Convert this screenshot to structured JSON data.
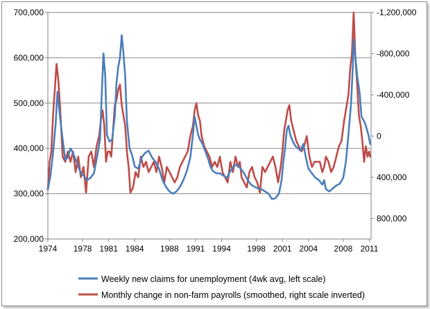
{
  "chart_data": {
    "type": "line",
    "title": "",
    "xlabel": "",
    "ylabel": "",
    "y2label": "",
    "x_ticks": [
      "1974",
      "1978",
      "1981",
      "1984",
      "1988",
      "1991",
      "1994",
      "1998",
      "2001",
      "2004",
      "2008",
      "2011"
    ],
    "xlim": [
      1974,
      2011.2
    ],
    "y_ticks": [
      "200,000",
      "300,000",
      "400,000",
      "500,000",
      "600,000",
      "700,000"
    ],
    "ylim": [
      200000,
      700000
    ],
    "y2_ticks": [
      "-1,200,000",
      "-800,000",
      "-400,000",
      "0",
      "400,000",
      "800,000"
    ],
    "y2lim": [
      -1200000,
      1000000
    ],
    "y2_inverted": true,
    "grid": true,
    "legend_position": "bottom",
    "series": [
      {
        "name": "Weekly new claims for unemployment (4wk avg, left scale)",
        "axis": "left",
        "color": "#4a7ebb",
        "x": [
          1974.0,
          1974.3,
          1974.6,
          1974.9,
          1975.1,
          1975.4,
          1975.7,
          1976.0,
          1976.3,
          1976.6,
          1976.9,
          1977.2,
          1977.5,
          1977.8,
          1978.1,
          1978.5,
          1978.9,
          1979.3,
          1979.7,
          1980.0,
          1980.2,
          1980.4,
          1980.6,
          1980.8,
          1981.1,
          1981.4,
          1981.7,
          1981.9,
          1982.1,
          1982.3,
          1982.5,
          1982.7,
          1982.9,
          1983.1,
          1983.4,
          1983.7,
          1984.0,
          1984.4,
          1984.8,
          1985.2,
          1985.6,
          1986.0,
          1986.4,
          1986.8,
          1987.2,
          1987.6,
          1988.0,
          1988.4,
          1988.8,
          1989.2,
          1989.6,
          1990.0,
          1990.4,
          1990.7,
          1990.9,
          1991.1,
          1991.3,
          1991.5,
          1991.8,
          1992.1,
          1992.4,
          1992.7,
          1993.0,
          1993.4,
          1993.8,
          1994.2,
          1994.6,
          1995.0,
          1995.4,
          1995.8,
          1996.2,
          1996.6,
          1997.0,
          1997.4,
          1997.8,
          1998.2,
          1998.6,
          1999.0,
          1999.4,
          1999.8,
          2000.2,
          2000.6,
          2000.9,
          2001.1,
          2001.3,
          2001.5,
          2001.7,
          2001.9,
          2002.2,
          2002.5,
          2002.8,
          2003.1,
          2003.4,
          2003.7,
          2004.0,
          2004.4,
          2004.8,
          2005.2,
          2005.6,
          2005.8,
          2006.0,
          2006.4,
          2006.8,
          2007.2,
          2007.6,
          2008.0,
          2008.3,
          2008.6,
          2008.9,
          2009.1,
          2009.2,
          2009.4,
          2009.6,
          2009.9,
          2010.1,
          2010.4,
          2010.6,
          2010.9,
          2011.1
        ],
        "values": [
          310000,
          340000,
          390000,
          455000,
          525000,
          470000,
          420000,
          375000,
          380000,
          400000,
          390000,
          375000,
          360000,
          345000,
          340000,
          330000,
          335000,
          345000,
          385000,
          420000,
          520000,
          610000,
          560000,
          430000,
          415000,
          420000,
          470000,
          545000,
          580000,
          600000,
          650000,
          610000,
          560000,
          460000,
          400000,
          385000,
          360000,
          355000,
          380000,
          390000,
          395000,
          380000,
          370000,
          355000,
          330000,
          315000,
          305000,
          300000,
          305000,
          315000,
          330000,
          350000,
          380000,
          430000,
          470000,
          450000,
          430000,
          420000,
          410000,
          395000,
          380000,
          360000,
          350000,
          345000,
          345000,
          340000,
          335000,
          350000,
          360000,
          365000,
          355000,
          345000,
          330000,
          320000,
          315000,
          312000,
          310000,
          305000,
          300000,
          288000,
          290000,
          300000,
          330000,
          370000,
          400000,
          440000,
          450000,
          430000,
          415000,
          405000,
          400000,
          395000,
          410000,
          380000,
          355000,
          345000,
          335000,
          330000,
          320000,
          330000,
          310000,
          305000,
          312000,
          318000,
          322000,
          335000,
          370000,
          430000,
          500000,
          580000,
          640000,
          600000,
          560000,
          520000,
          470000,
          460000,
          450000,
          430000,
          410000
        ]
      },
      {
        "name": "Monthly change in non-farm payrolls (smoothed, right scale inverted)",
        "axis": "right",
        "color": "#be4b48",
        "x": [
          1974.0,
          1974.2,
          1974.4,
          1974.6,
          1974.8,
          1975.0,
          1975.2,
          1975.4,
          1975.7,
          1976.0,
          1976.3,
          1976.6,
          1976.9,
          1977.2,
          1977.5,
          1977.8,
          1978.1,
          1978.4,
          1978.7,
          1979.0,
          1979.3,
          1979.6,
          1979.9,
          1980.1,
          1980.3,
          1980.5,
          1980.7,
          1980.9,
          1981.1,
          1981.3,
          1981.5,
          1981.7,
          1981.9,
          1982.1,
          1982.3,
          1982.5,
          1982.7,
          1982.9,
          1983.1,
          1983.3,
          1983.5,
          1983.8,
          1984.1,
          1984.4,
          1984.7,
          1985.0,
          1985.3,
          1985.6,
          1985.9,
          1986.2,
          1986.5,
          1986.8,
          1987.1,
          1987.4,
          1987.7,
          1988.0,
          1988.3,
          1988.6,
          1988.9,
          1989.2,
          1989.5,
          1989.8,
          1990.1,
          1990.4,
          1990.7,
          1990.9,
          1991.1,
          1991.3,
          1991.5,
          1991.7,
          1992.0,
          1992.3,
          1992.6,
          1992.9,
          1993.2,
          1993.5,
          1993.8,
          1994.1,
          1994.4,
          1994.7,
          1995.0,
          1995.3,
          1995.6,
          1995.9,
          1996.1,
          1996.3,
          1996.6,
          1996.9,
          1997.2,
          1997.5,
          1997.8,
          1998.1,
          1998.4,
          1998.7,
          1999.0,
          1999.3,
          1999.6,
          1999.9,
          2000.2,
          2000.5,
          2000.8,
          2001.0,
          2001.2,
          2001.4,
          2001.6,
          2001.8,
          2002.0,
          2002.3,
          2002.6,
          2002.9,
          2003.2,
          2003.5,
          2003.8,
          2004.1,
          2004.4,
          2004.7,
          2005.0,
          2005.3,
          2005.6,
          2005.8,
          2006.0,
          2006.3,
          2006.6,
          2006.9,
          2007.2,
          2007.5,
          2007.8,
          2008.1,
          2008.4,
          2008.6,
          2008.8,
          2009.0,
          2009.1,
          2009.2,
          2009.4,
          2009.6,
          2009.8,
          2010.0,
          2010.2,
          2010.4,
          2010.6,
          2010.8,
          2011.0,
          2011.1
        ],
        "values": [
          520000,
          250000,
          150000,
          -200000,
          -450000,
          -700000,
          -550000,
          -300000,
          200000,
          250000,
          150000,
          250000,
          150000,
          350000,
          200000,
          400000,
          300000,
          550000,
          200000,
          150000,
          300000,
          100000,
          0,
          -150000,
          -250000,
          -100000,
          250000,
          150000,
          150000,
          200000,
          -50000,
          -300000,
          -350000,
          -450000,
          -500000,
          -300000,
          -200000,
          -100000,
          150000,
          300000,
          550000,
          500000,
          350000,
          400000,
          200000,
          300000,
          250000,
          350000,
          300000,
          250000,
          350000,
          200000,
          300000,
          450000,
          300000,
          350000,
          400000,
          450000,
          400000,
          300000,
          250000,
          200000,
          150000,
          0,
          -100000,
          -250000,
          -320000,
          -200000,
          -150000,
          0,
          100000,
          150000,
          200000,
          300000,
          250000,
          300000,
          200000,
          350000,
          400000,
          450000,
          250000,
          350000,
          200000,
          300000,
          250000,
          400000,
          450000,
          500000,
          350000,
          300000,
          400000,
          450000,
          550000,
          300000,
          350000,
          300000,
          250000,
          200000,
          300000,
          450000,
          300000,
          150000,
          -50000,
          -150000,
          -250000,
          -300000,
          -150000,
          -50000,
          50000,
          100000,
          150000,
          100000,
          0,
          200000,
          300000,
          250000,
          250000,
          250000,
          350000,
          300000,
          200000,
          250000,
          350000,
          300000,
          200000,
          100000,
          50000,
          -150000,
          -300000,
          -400000,
          -650000,
          -800000,
          -1000000,
          -1200000,
          -750000,
          -500000,
          -200000,
          -100000,
          50000,
          250000,
          100000,
          200000,
          150000,
          200000
        ]
      }
    ]
  }
}
